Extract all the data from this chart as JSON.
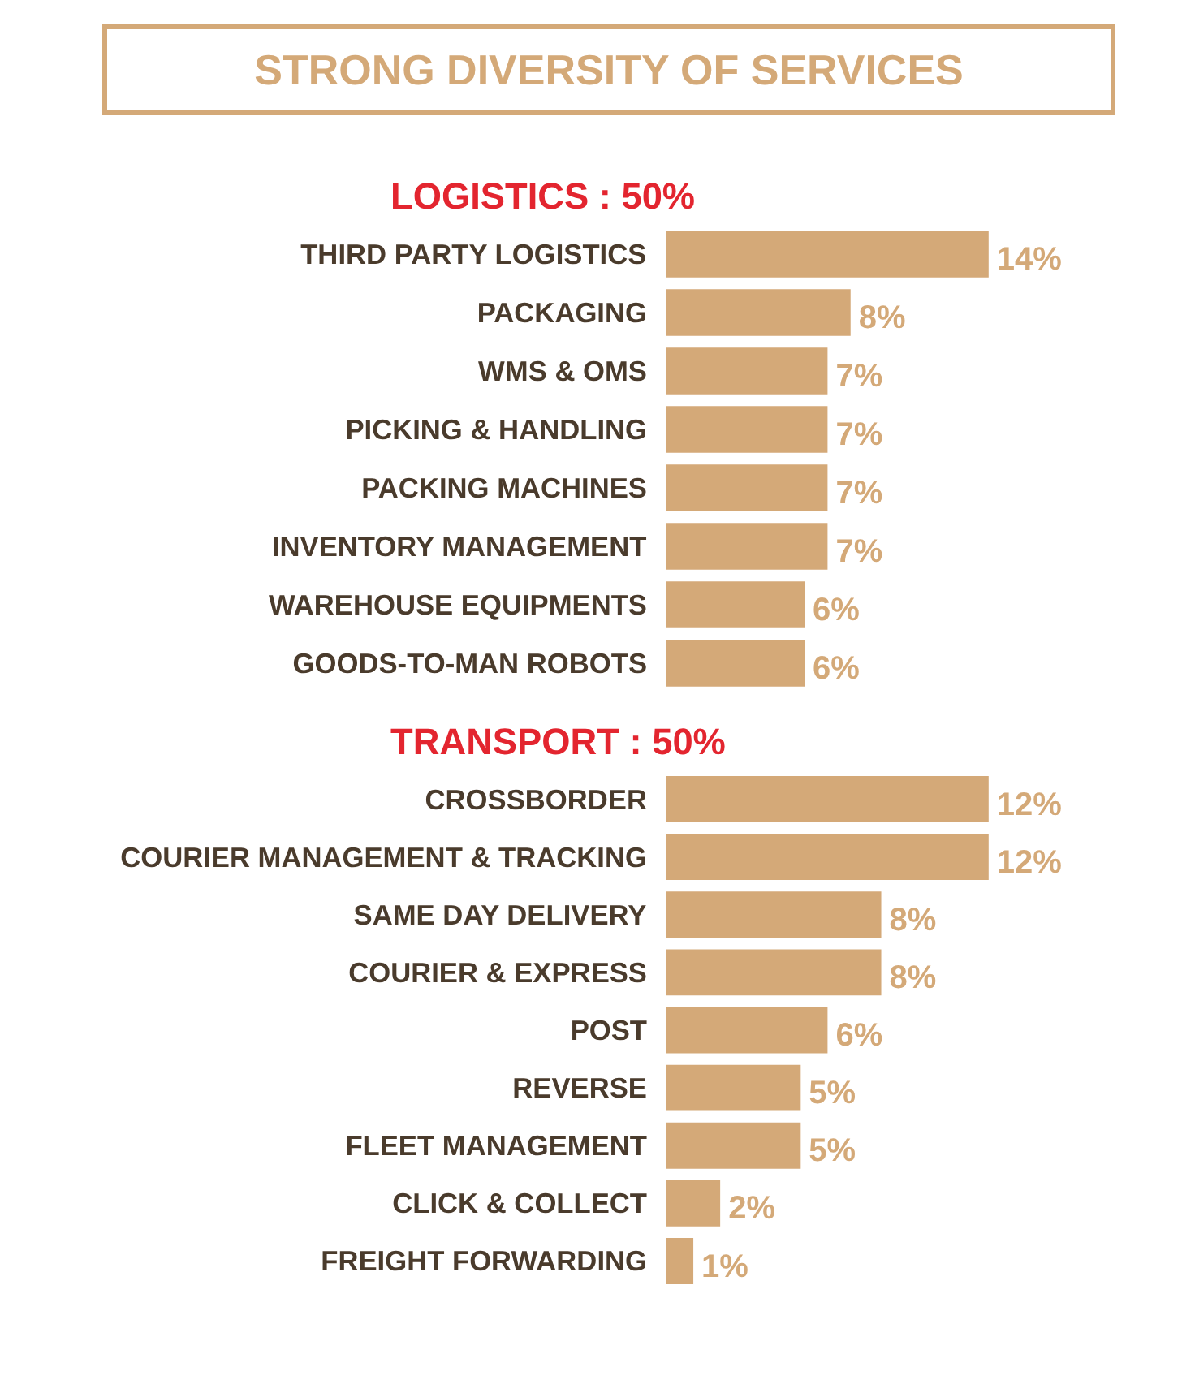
{
  "chart_data": [
    {
      "type": "other",
      "title": "STRONG DIVERSITY OF SERVICES"
    },
    {
      "type": "bar",
      "orientation": "horizontal",
      "title": "LOGISTICS : 50%",
      "categories": [
        "THIRD PARTY LOGISTICS",
        "PACKAGING",
        "WMS & OMS",
        "PICKING & HANDLING",
        "PACKING MACHINES",
        "INVENTORY MANAGEMENT",
        "WAREHOUSE EQUIPMENTS",
        "GOODS-TO-MAN ROBOTS"
      ],
      "values": [
        14,
        8,
        7,
        7,
        7,
        7,
        6,
        6
      ],
      "value_labels": [
        "14%",
        "8%",
        "7%",
        "7%",
        "7%",
        "7%",
        "6%",
        "6%"
      ],
      "color": "#d4a978"
    },
    {
      "type": "bar",
      "orientation": "horizontal",
      "title": "TRANSPORT : 50%",
      "categories": [
        "CROSSBORDER",
        "COURIER MANAGEMENT & TRACKING",
        "SAME DAY DELIVERY",
        "COURIER & EXPRESS",
        "POST",
        "REVERSE",
        "FLEET MANAGEMENT",
        "CLICK & COLLECT",
        "FREIGHT FORWARDING"
      ],
      "values": [
        12,
        12,
        8,
        8,
        6,
        5,
        5,
        2,
        1
      ],
      "value_labels": [
        "12%",
        "12%",
        "8%",
        "8%",
        "6%",
        "5%",
        "5%",
        "2%",
        "1%"
      ],
      "color": "#d4a978"
    }
  ]
}
